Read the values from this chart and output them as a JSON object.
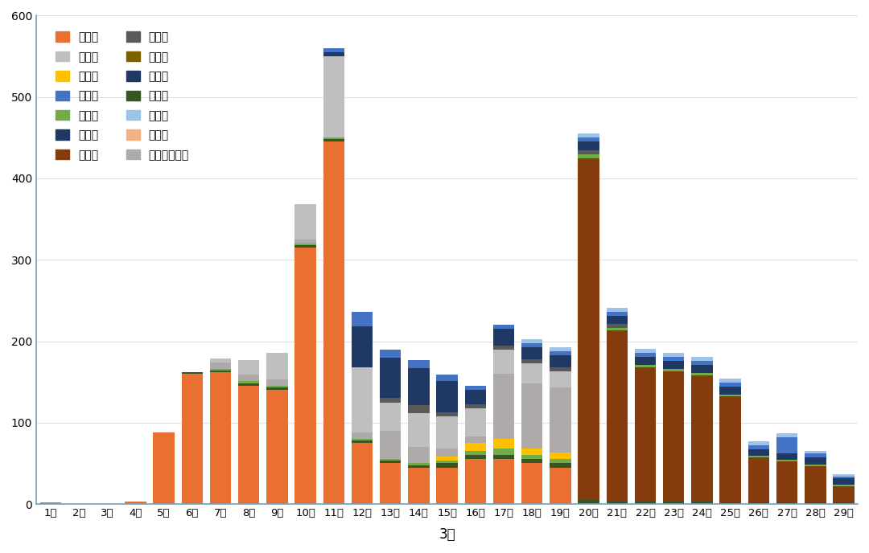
{
  "days": [
    "1日",
    "2日",
    "3日",
    "4日",
    "5日",
    "6日",
    "7日",
    "8日",
    "9日",
    "10日",
    "11日",
    "12日",
    "13日",
    "14日",
    "15日",
    "16日",
    "17日",
    "18日",
    "19日",
    "20日",
    "21日",
    "22日",
    "23日",
    "24日",
    "25日",
    "26日",
    "27日",
    "28日",
    "29日"
  ],
  "series": {
    "青岛市": [
      2,
      0,
      0,
      3,
      88,
      160,
      162,
      145,
      140,
      315,
      445,
      75,
      50,
      45,
      45,
      55,
      55,
      50,
      45,
      0,
      0,
      0,
      0,
      0,
      0,
      0,
      0,
      0,
      0
    ],
    "淄博市": [
      0,
      0,
      0,
      0,
      0,
      0,
      0,
      0,
      0,
      0,
      0,
      0,
      0,
      0,
      5,
      10,
      12,
      8,
      8,
      0,
      0,
      0,
      0,
      0,
      0,
      0,
      0,
      0,
      0
    ],
    "烟台市": [
      0,
      0,
      0,
      0,
      0,
      0,
      2,
      3,
      2,
      2,
      2,
      2,
      2,
      2,
      3,
      5,
      8,
      5,
      5,
      5,
      3,
      3,
      3,
      3,
      2,
      2,
      2,
      2,
      2
    ],
    "滨州市": [
      0,
      0,
      0,
      0,
      0,
      0,
      0,
      0,
      0,
      0,
      0,
      0,
      0,
      0,
      0,
      0,
      0,
      0,
      0,
      420,
      210,
      165,
      160,
      155,
      130,
      55,
      50,
      45,
      20
    ],
    "日照市": [
      0,
      0,
      0,
      0,
      0,
      0,
      0,
      0,
      0,
      0,
      0,
      0,
      0,
      0,
      0,
      0,
      0,
      0,
      0,
      0,
      0,
      0,
      0,
      0,
      0,
      0,
      0,
      0,
      0
    ],
    "济南市": [
      0,
      0,
      0,
      0,
      0,
      2,
      2,
      3,
      3,
      3,
      3,
      3,
      3,
      3,
      5,
      5,
      5,
      5,
      5,
      5,
      3,
      3,
      3,
      3,
      2,
      2,
      2,
      2,
      2
    ],
    "泰安市": [
      0,
      0,
      0,
      0,
      0,
      0,
      0,
      0,
      0,
      0,
      0,
      0,
      0,
      0,
      0,
      0,
      0,
      0,
      0,
      0,
      0,
      0,
      0,
      0,
      0,
      0,
      0,
      0,
      0
    ],
    "威海市": [
      0,
      0,
      0,
      0,
      0,
      0,
      5,
      18,
      33,
      43,
      100,
      80,
      35,
      42,
      40,
      35,
      30,
      25,
      20,
      0,
      0,
      0,
      0,
      0,
      0,
      0,
      0,
      0,
      0
    ],
    "德州市": [
      0,
      0,
      0,
      0,
      0,
      0,
      0,
      0,
      0,
      0,
      5,
      18,
      10,
      10,
      8,
      5,
      5,
      5,
      5,
      5,
      5,
      5,
      5,
      5,
      5,
      5,
      20,
      5,
      2
    ],
    "潍坊市": [
      0,
      0,
      0,
      0,
      0,
      0,
      0,
      0,
      0,
      0,
      0,
      20,
      30,
      30,
      28,
      12,
      15,
      10,
      10,
      5,
      5,
      5,
      5,
      5,
      5,
      3,
      3,
      3,
      3
    ],
    "聊城市": [
      0,
      0,
      0,
      0,
      0,
      0,
      0,
      0,
      0,
      0,
      0,
      0,
      5,
      10,
      5,
      5,
      5,
      5,
      5,
      5,
      5,
      0,
      0,
      0,
      0,
      0,
      0,
      0,
      0
    ],
    "临沂市": [
      0,
      0,
      0,
      0,
      0,
      0,
      0,
      0,
      0,
      0,
      5,
      30,
      20,
      15,
      10,
      5,
      5,
      5,
      5,
      5,
      5,
      5,
      5,
      5,
      5,
      5,
      5,
      5,
      5
    ],
    "枣庄市": [
      0,
      0,
      0,
      0,
      0,
      0,
      0,
      0,
      0,
      0,
      0,
      0,
      0,
      0,
      0,
      0,
      0,
      5,
      5,
      5,
      5,
      5,
      5,
      5,
      5,
      5,
      5,
      3,
      3
    ],
    "河南省濮阳市": [
      0,
      0,
      0,
      0,
      0,
      0,
      8,
      8,
      8,
      5,
      0,
      8,
      35,
      20,
      10,
      8,
      80,
      80,
      80,
      0,
      0,
      0,
      0,
      0,
      0,
      0,
      0,
      0,
      0
    ]
  },
  "colors": {
    "青岛市": "#E97030",
    "淄博市": "#FFC000",
    "烟台市": "#70AD47",
    "滨州市": "#843C0C",
    "日照市": "#7F6000",
    "济南市": "#375623",
    "泰安市": "#F4B183",
    "威海市": "#BFBFBF",
    "德州市": "#4472C4",
    "潍坊市": "#1F3864",
    "聊城市": "#595959",
    "临沂市": "#203864",
    "枣庄市": "#9DC3E6",
    "河南省濮阳市": "#AEAAAA"
  },
  "xlabel": "3月",
  "ylim": [
    0,
    600
  ],
  "yticks": [
    0,
    100,
    200,
    300,
    400,
    500,
    600
  ],
  "bg_color": "#FFFFFF",
  "legend_order": [
    "青岛市",
    "威海市",
    "淄博市",
    "德州市",
    "烟台市",
    "潍坊市",
    "滨州市",
    "聊城市",
    "日照市",
    "临沂市",
    "济南市",
    "枣庄市",
    "泰安市",
    "河南省濮阳市"
  ],
  "plot_order": [
    "青岛市",
    "泰安市",
    "济南市",
    "日照市",
    "滨州市",
    "烟台市",
    "淄博市",
    "河南省濮阳市",
    "威海市",
    "聊城市",
    "潍坊市",
    "临沂市",
    "德州市",
    "枣庄市"
  ]
}
